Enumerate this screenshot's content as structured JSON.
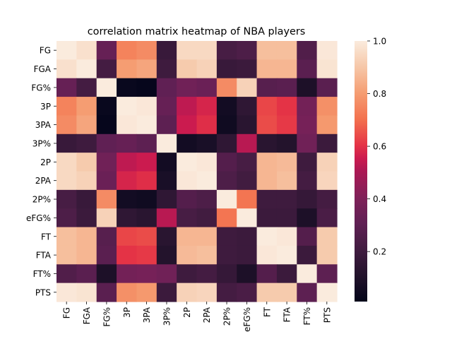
{
  "chart_data": {
    "type": "heatmap",
    "title": "correlation matrix heatmap of NBA players",
    "rows": [
      "FG",
      "FGA",
      "FG%",
      "3P",
      "3PA",
      "3P%",
      "2P",
      "2PA",
      "2P%",
      "eFG%",
      "FT",
      "FTA",
      "FT%",
      "PTS"
    ],
    "columns": [
      "FG",
      "FGA",
      "FG%",
      "3P",
      "3PA",
      "3P%",
      "2P",
      "2PA",
      "2P%",
      "eFG%",
      "FT",
      "FTA",
      "FT%",
      "PTS"
    ],
    "values": [
      [
        1.0,
        0.97,
        0.32,
        0.74,
        0.76,
        0.17,
        0.95,
        0.95,
        0.22,
        0.24,
        0.88,
        0.88,
        0.25,
        0.99
      ],
      [
        0.97,
        1.0,
        0.21,
        0.8,
        0.82,
        0.19,
        0.91,
        0.93,
        0.17,
        0.18,
        0.86,
        0.86,
        0.28,
        0.98
      ],
      [
        0.32,
        0.21,
        1.0,
        0.02,
        0.01,
        0.3,
        0.35,
        0.33,
        0.76,
        0.93,
        0.27,
        0.28,
        0.08,
        0.28
      ],
      [
        0.74,
        0.8,
        0.02,
        1.0,
        0.99,
        0.32,
        0.53,
        0.57,
        0.05,
        0.14,
        0.63,
        0.6,
        0.36,
        0.77
      ],
      [
        0.76,
        0.82,
        0.01,
        0.99,
        1.0,
        0.29,
        0.55,
        0.59,
        0.04,
        0.12,
        0.64,
        0.61,
        0.37,
        0.79
      ],
      [
        0.17,
        0.19,
        0.3,
        0.32,
        0.29,
        1.0,
        0.05,
        0.07,
        0.14,
        0.52,
        0.12,
        0.1,
        0.35,
        0.18
      ],
      [
        0.95,
        0.91,
        0.35,
        0.53,
        0.55,
        0.05,
        1.0,
        0.99,
        0.26,
        0.22,
        0.86,
        0.87,
        0.19,
        0.93
      ],
      [
        0.95,
        0.93,
        0.33,
        0.57,
        0.59,
        0.07,
        0.99,
        1.0,
        0.24,
        0.2,
        0.86,
        0.88,
        0.21,
        0.94
      ],
      [
        0.22,
        0.17,
        0.76,
        0.05,
        0.04,
        0.14,
        0.26,
        0.24,
        1.0,
        0.71,
        0.19,
        0.19,
        0.16,
        0.21
      ],
      [
        0.24,
        0.18,
        0.93,
        0.14,
        0.12,
        0.52,
        0.22,
        0.2,
        0.71,
        1.0,
        0.18,
        0.18,
        0.08,
        0.23
      ],
      [
        0.88,
        0.86,
        0.27,
        0.63,
        0.64,
        0.12,
        0.86,
        0.86,
        0.19,
        0.18,
        1.0,
        0.99,
        0.26,
        0.91
      ],
      [
        0.88,
        0.86,
        0.28,
        0.6,
        0.61,
        0.1,
        0.87,
        0.88,
        0.19,
        0.18,
        0.99,
        1.0,
        0.18,
        0.91
      ],
      [
        0.25,
        0.28,
        0.08,
        0.36,
        0.37,
        0.35,
        0.19,
        0.21,
        0.16,
        0.08,
        0.26,
        0.18,
        1.0,
        0.29
      ],
      [
        0.99,
        0.98,
        0.28,
        0.77,
        0.79,
        0.18,
        0.93,
        0.94,
        0.21,
        0.23,
        0.91,
        0.91,
        0.29,
        1.0
      ]
    ],
    "colormap": "rocket",
    "vmin": 0.0,
    "vmax": 1.0,
    "colorbar_ticks": [
      "0.2",
      "0.4",
      "0.6",
      "0.8",
      "1.0"
    ],
    "colorbar_tick_values": [
      0.2,
      0.4,
      0.6,
      0.8,
      1.0
    ],
    "grid": false,
    "legend": "colorbar-right"
  }
}
